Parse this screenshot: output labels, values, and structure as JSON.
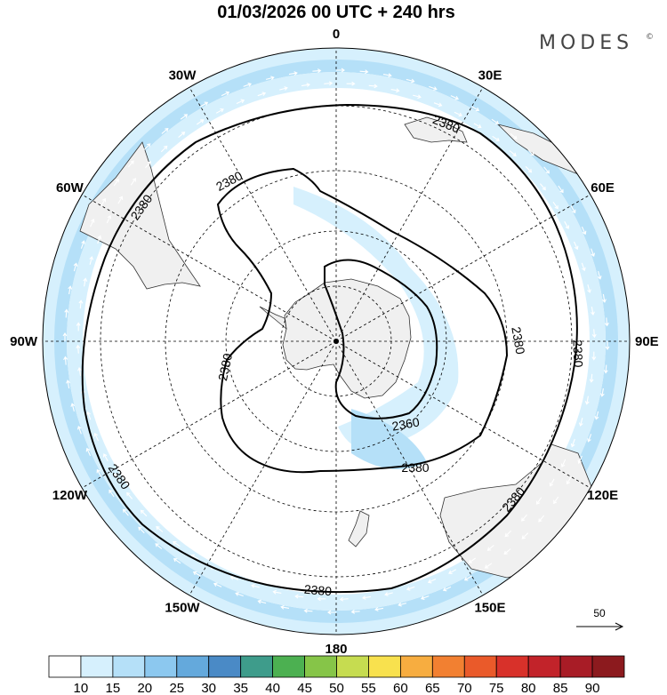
{
  "title": "01/03/2026  00 UTC  + 240 hrs",
  "brand": {
    "text": "MODES",
    "mark": "©"
  },
  "longitude_labels": [
    {
      "text": "0",
      "lon": 0
    },
    {
      "text": "30E",
      "lon": 30
    },
    {
      "text": "60E",
      "lon": 60
    },
    {
      "text": "90E",
      "lon": 90
    },
    {
      "text": "120E",
      "lon": 120
    },
    {
      "text": "150E",
      "lon": 150
    },
    {
      "text": "180",
      "lon": 180
    },
    {
      "text": "150W",
      "lon": -150
    },
    {
      "text": "120W",
      "lon": -120
    },
    {
      "text": "90W",
      "lon": -90
    },
    {
      "text": "60W",
      "lon": -60
    },
    {
      "text": "30W",
      "lon": -30
    }
  ],
  "contour_labels": [
    "2380",
    "2380",
    "2380",
    "2380",
    "2380",
    "2380",
    "2380",
    "2380",
    "2380",
    "2360"
  ],
  "reference_vector": {
    "value": "50"
  },
  "colorbar": {
    "ticks": [
      "10",
      "15",
      "20",
      "25",
      "30",
      "35",
      "40",
      "45",
      "50",
      "55",
      "60",
      "65",
      "70",
      "75",
      "80",
      "85",
      "90"
    ],
    "colors": [
      "#ffffff",
      "#d6f0fd",
      "#b5e0f8",
      "#8cc8ef",
      "#64a9dc",
      "#4a8ac6",
      "#3e9c8b",
      "#4cb051",
      "#86c548",
      "#c6dc50",
      "#f8e14e",
      "#f7ad40",
      "#f28031",
      "#ea5a2a",
      "#d8312a",
      "#c2232a",
      "#a81c26",
      "#8c1a1e"
    ]
  },
  "colors": {
    "land": "#f0f0f0",
    "coast": "#333333",
    "wind_light": "#d6f0fd",
    "wind_medium": "#b5e0f8",
    "contour": "#000000",
    "grid": "#000000"
  }
}
